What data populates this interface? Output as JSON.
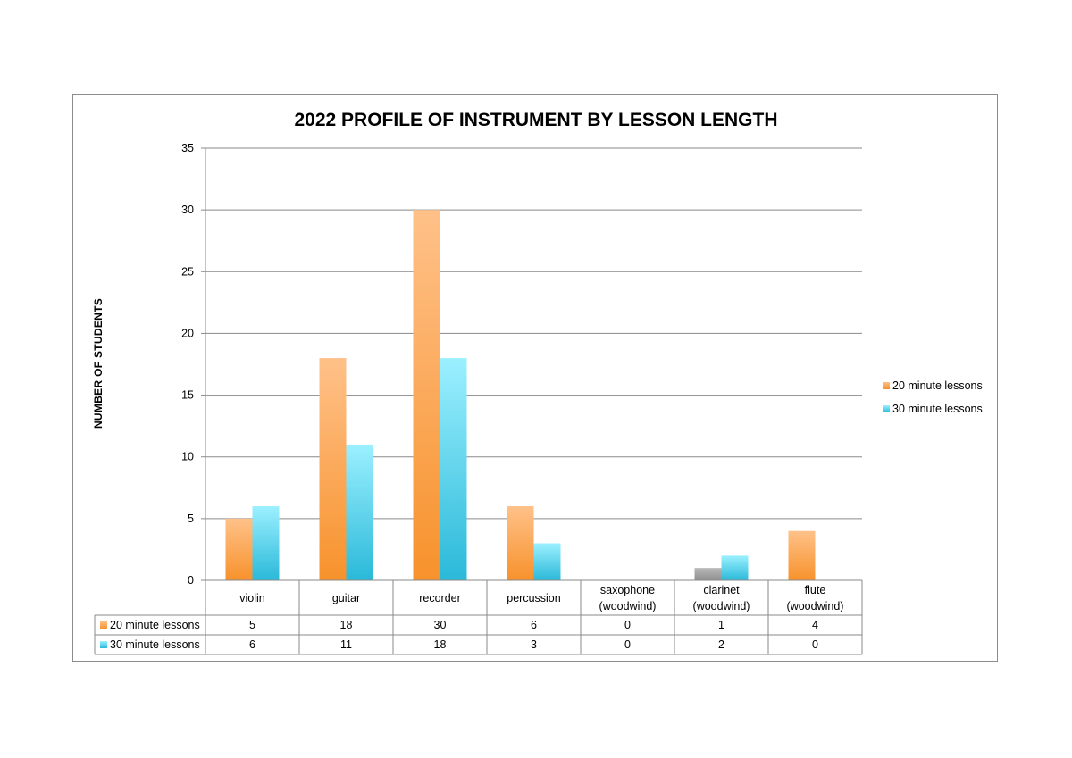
{
  "chart_data": {
    "type": "bar",
    "title": "2022 PROFILE OF INSTRUMENT BY LESSON LENGTH",
    "xlabel": "",
    "ylabel": "NUMBER OF STUDENTS",
    "ylim": [
      0,
      35
    ],
    "yticks": [
      "0",
      "5",
      "10",
      "15",
      "20",
      "25",
      "30",
      "35"
    ],
    "grid": true,
    "legend_position": "right",
    "categories": [
      [
        "violin"
      ],
      [
        "guitar"
      ],
      [
        "recorder"
      ],
      [
        "percussion"
      ],
      [
        "saxophone",
        "(woodwind)"
      ],
      [
        "clarinet",
        "(woodwind)"
      ],
      [
        "flute",
        "(woodwind)"
      ]
    ],
    "series": [
      {
        "name": "20 minute lessons",
        "color": "#f79b3c",
        "values": [
          5,
          18,
          30,
          6,
          0,
          1,
          4
        ]
      },
      {
        "name": "30 minute lessons",
        "color": "#4fd3ee",
        "values": [
          6,
          11,
          18,
          3,
          0,
          2,
          0
        ]
      }
    ]
  }
}
